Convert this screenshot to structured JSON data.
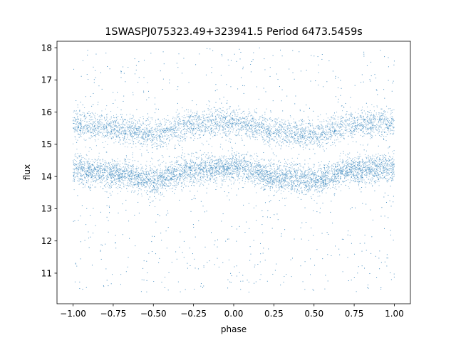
{
  "chart_data": {
    "type": "scatter",
    "title": "1SWASPJ075323.49+323941.5 Period 6473.5459s",
    "xlabel": "phase",
    "ylabel": "flux",
    "xlim": [
      -1.1,
      1.1
    ],
    "ylim": [
      10.05,
      18.2
    ],
    "xticks": [
      -1.0,
      -0.75,
      -0.5,
      -0.25,
      0.0,
      0.25,
      0.5,
      0.75,
      1.0
    ],
    "xtick_labels": [
      "−1.00",
      "−0.75",
      "−0.50",
      "−0.25",
      "0.00",
      "0.25",
      "0.50",
      "0.75",
      "1.00"
    ],
    "yticks": [
      11,
      12,
      13,
      14,
      15,
      16,
      17,
      18
    ],
    "ytick_labels": [
      "11",
      "12",
      "13",
      "14",
      "15",
      "16",
      "17",
      "18"
    ],
    "grid": false,
    "marker_color": "#1f77b4",
    "series": [
      {
        "x": [
          -1.0,
          -0.75,
          -0.5,
          -0.25,
          0.0,
          0.25,
          0.5,
          0.75,
          1.0
        ],
        "y": [
          14.2,
          14.1,
          13.9,
          14.2,
          14.3,
          14.0,
          13.9,
          14.2,
          14.3
        ]
      },
      {
        "x": [
          -1.0,
          -0.75,
          -0.5,
          -0.25,
          0.0,
          0.25,
          0.5,
          0.75,
          1.0
        ],
        "y": [
          15.6,
          15.5,
          15.3,
          15.6,
          15.7,
          15.4,
          15.3,
          15.6,
          15.7
        ]
      }
    ]
  }
}
